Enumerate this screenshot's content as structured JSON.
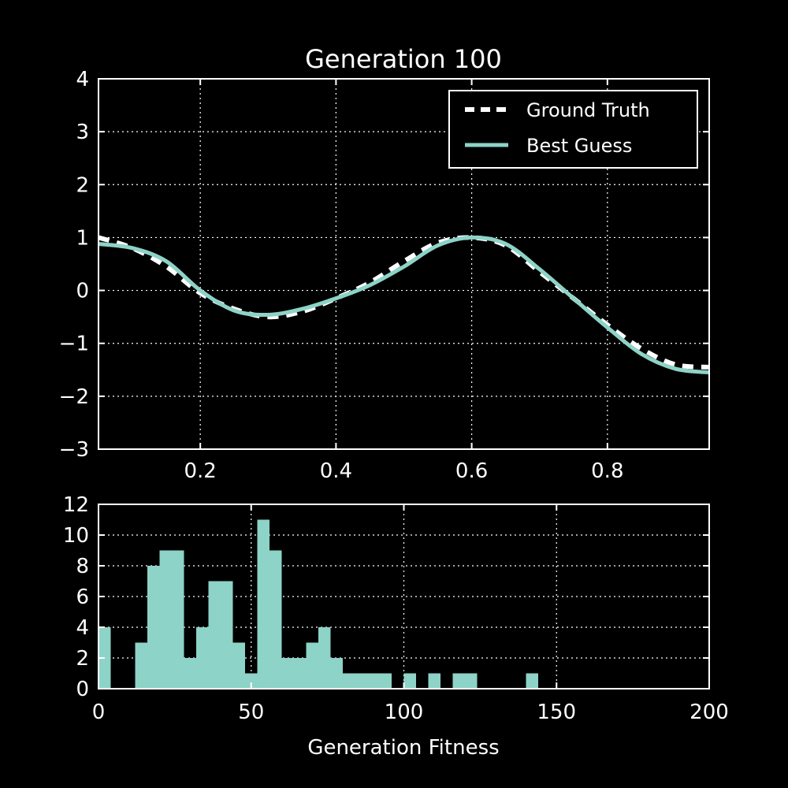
{
  "colors": {
    "background": "#000000",
    "foreground": "#ffffff",
    "accent": "#8dd3c7"
  },
  "chart_data": [
    {
      "type": "line",
      "title": "Generation 100",
      "xlabel": "",
      "ylabel": "",
      "xlim": [
        0.05,
        0.95
      ],
      "ylim": [
        -3,
        4
      ],
      "xticks": [
        0.2,
        0.4,
        0.6,
        0.8
      ],
      "xtick_labels": [
        "0.2",
        "0.4",
        "0.6",
        "0.8"
      ],
      "yticks": [
        -3,
        -2,
        -1,
        0,
        1,
        2,
        3,
        4
      ],
      "ytick_labels": [
        "−3",
        "−2",
        "−1",
        "0",
        "1",
        "2",
        "3",
        "4"
      ],
      "grid": true,
      "legend": {
        "placement": "top-right"
      },
      "series": [
        {
          "name": "Ground Truth",
          "style": "dashed",
          "color": "#ffffff",
          "x": [
            0.05,
            0.1,
            0.15,
            0.2,
            0.25,
            0.3,
            0.35,
            0.4,
            0.45,
            0.5,
            0.55,
            0.6,
            0.65,
            0.7,
            0.75,
            0.8,
            0.85,
            0.9,
            0.95
          ],
          "y": [
            1.0,
            0.8,
            0.45,
            -0.05,
            -0.35,
            -0.5,
            -0.4,
            -0.15,
            0.15,
            0.55,
            0.9,
            1.0,
            0.85,
            0.35,
            -0.15,
            -0.65,
            -1.1,
            -1.4,
            -1.45
          ]
        },
        {
          "name": "Best Guess",
          "style": "solid",
          "color": "#8dd3c7",
          "x": [
            0.05,
            0.1,
            0.15,
            0.2,
            0.25,
            0.3,
            0.35,
            0.4,
            0.45,
            0.5,
            0.55,
            0.6,
            0.65,
            0.7,
            0.75,
            0.8,
            0.85,
            0.9,
            0.95
          ],
          "y": [
            0.88,
            0.8,
            0.55,
            0.0,
            -0.38,
            -0.46,
            -0.35,
            -0.15,
            0.1,
            0.45,
            0.85,
            1.0,
            0.88,
            0.4,
            -0.15,
            -0.7,
            -1.2,
            -1.48,
            -1.55
          ]
        }
      ]
    },
    {
      "type": "bar",
      "title": "",
      "xlabel": "Generation Fitness",
      "ylabel": "",
      "xlim": [
        0,
        200
      ],
      "ylim": [
        0,
        12
      ],
      "xticks": [
        0,
        50,
        100,
        150,
        200
      ],
      "xtick_labels": [
        "0",
        "50",
        "100",
        "150",
        "200"
      ],
      "yticks": [
        0,
        2,
        4,
        6,
        8,
        10,
        12
      ],
      "ytick_labels": [
        "0",
        "2",
        "4",
        "6",
        "8",
        "10",
        "12"
      ],
      "grid": true,
      "bin_width": 4,
      "bin_starts": [
        0,
        12,
        16,
        20,
        24,
        28,
        32,
        36,
        40,
        44,
        48,
        52,
        56,
        60,
        64,
        68,
        72,
        76,
        80,
        84,
        88,
        92,
        100,
        108,
        116,
        120,
        140
      ],
      "values": [
        4,
        3,
        8,
        9,
        9,
        2,
        4,
        7,
        7,
        3,
        1,
        11,
        9,
        2,
        2,
        3,
        4,
        2,
        1,
        1,
        1,
        1,
        1,
        1,
        1,
        1,
        1
      ],
      "color": "#8dd3c7"
    }
  ]
}
